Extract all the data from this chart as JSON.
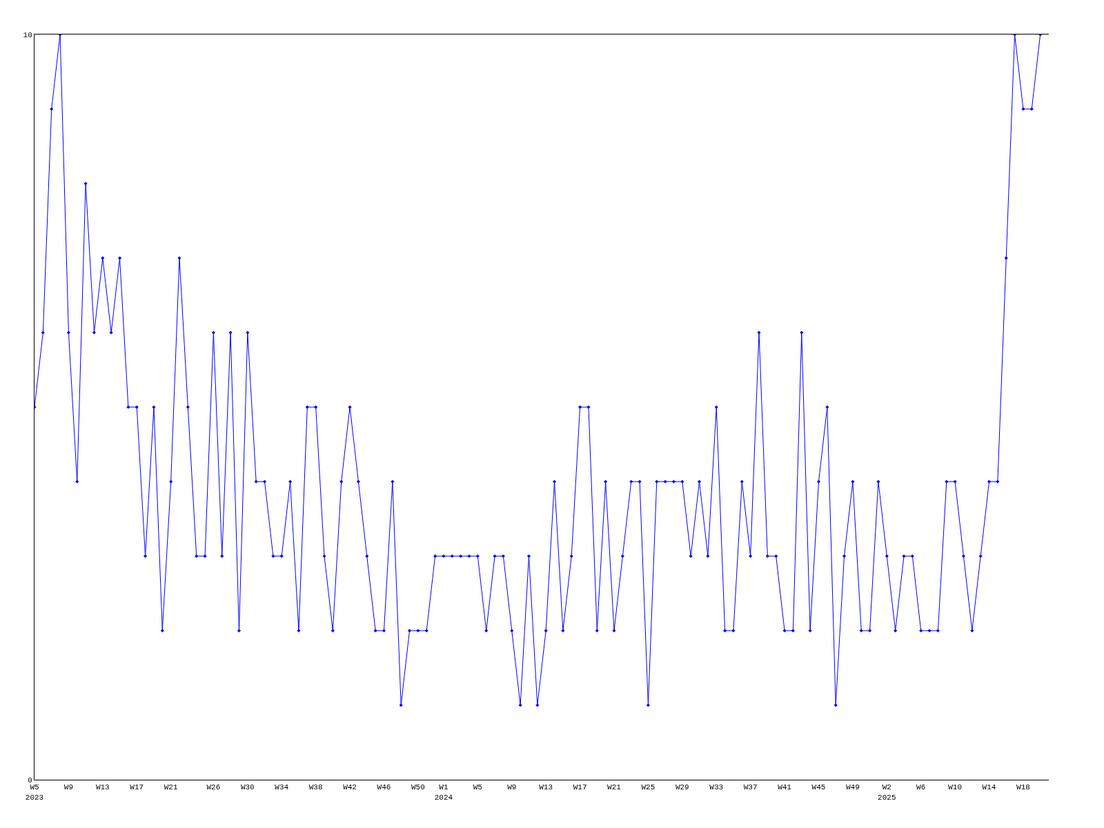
{
  "chart_data": {
    "type": "line",
    "categories": [
      "W5\n2023",
      null,
      null,
      null,
      "W9",
      null,
      null,
      null,
      "W13",
      null,
      null,
      null,
      "W17",
      null,
      null,
      null,
      "W21",
      null,
      null,
      null,
      null,
      "W26",
      null,
      null,
      null,
      "W30",
      null,
      null,
      null,
      "W34",
      null,
      null,
      null,
      "W38",
      null,
      null,
      null,
      "W42",
      null,
      null,
      null,
      "W46",
      null,
      null,
      null,
      "W50",
      null,
      null,
      "W1\n2024",
      null,
      null,
      null,
      "W5",
      null,
      null,
      null,
      "W9",
      null,
      null,
      null,
      "W13",
      null,
      null,
      null,
      "W17",
      null,
      null,
      null,
      "W21",
      null,
      null,
      null,
      "W25",
      null,
      null,
      null,
      "W29",
      null,
      null,
      null,
      "W33",
      null,
      null,
      null,
      "W37",
      null,
      null,
      null,
      "W41",
      null,
      null,
      null,
      "W45",
      null,
      null,
      null,
      "W49",
      null,
      null,
      null,
      "W2\n2025",
      null,
      null,
      null,
      "W6",
      null,
      null,
      null,
      "W10",
      null,
      null,
      null,
      "W14",
      null,
      null,
      null,
      "W18",
      null,
      null
    ],
    "series": [
      {
        "color": "#0000ff",
        "values": [
          5,
          6,
          9,
          10,
          6,
          4,
          8,
          6,
          7,
          6,
          7,
          5,
          5,
          3,
          5,
          2,
          4,
          7,
          5,
          3,
          3,
          6,
          3,
          6,
          2,
          6,
          4,
          4,
          3,
          3,
          4,
          2,
          5,
          5,
          3,
          2,
          4,
          5,
          4,
          3,
          2,
          2,
          4,
          1,
          2,
          2,
          2,
          3,
          3,
          3,
          3,
          3,
          3,
          2,
          3,
          3,
          2,
          1,
          3,
          1,
          2,
          4,
          2,
          3,
          5,
          5,
          2,
          4,
          2,
          3,
          4,
          4,
          1,
          4,
          4,
          4,
          4,
          3,
          4,
          3,
          5,
          2,
          2,
          4,
          3,
          6,
          3,
          3,
          2,
          2,
          6,
          2,
          4,
          5,
          1,
          3,
          4,
          2,
          2,
          4,
          3,
          2,
          3,
          3,
          2,
          2,
          2,
          4,
          4,
          3,
          2,
          3,
          4,
          4,
          7,
          10,
          9,
          9,
          10
        ]
      }
    ],
    "ylim": [
      0,
      10
    ],
    "yticks": [
      0,
      10
    ],
    "marker": "diamond",
    "line_style": "solid"
  }
}
